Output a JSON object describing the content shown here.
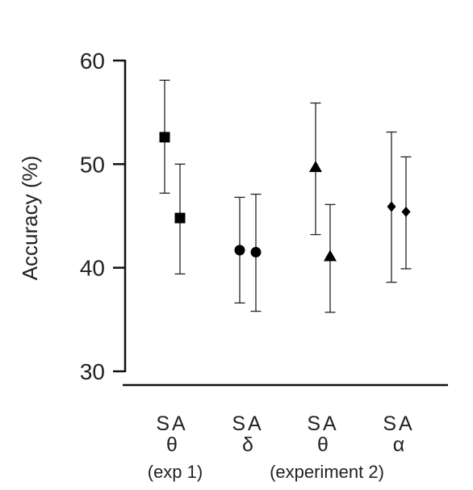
{
  "chart_data": {
    "type": "scatter",
    "ylabel": "Accuracy (%)",
    "ylim": [
      30,
      60
    ],
    "yticks": [
      30,
      40,
      50,
      60
    ],
    "grid": false,
    "points": [
      {
        "cond": "S",
        "band": "θ",
        "group": 0,
        "marker": "square",
        "y": 52.6,
        "err_low": 47.2,
        "err_high": 58.1
      },
      {
        "cond": "A",
        "band": "θ",
        "group": 0,
        "marker": "square",
        "y": 44.8,
        "err_low": 39.4,
        "err_high": 50.0
      },
      {
        "cond": "S",
        "band": "δ",
        "group": 1,
        "marker": "circle",
        "y": 41.7,
        "err_low": 36.6,
        "err_high": 46.8
      },
      {
        "cond": "A",
        "band": "δ",
        "group": 1,
        "marker": "circle",
        "y": 41.5,
        "err_low": 35.8,
        "err_high": 47.1
      },
      {
        "cond": "S",
        "band": "θ",
        "group": 2,
        "marker": "triangle",
        "y": 49.7,
        "err_low": 43.2,
        "err_high": 55.9
      },
      {
        "cond": "A",
        "band": "θ",
        "group": 2,
        "marker": "triangle",
        "y": 41.1,
        "err_low": 35.7,
        "err_high": 46.1
      },
      {
        "cond": "S",
        "band": "α",
        "group": 3,
        "marker": "diamond",
        "y": 45.9,
        "err_low": 38.6,
        "err_high": 53.1
      },
      {
        "cond": "A",
        "band": "α",
        "group": 3,
        "marker": "diamond",
        "y": 45.4,
        "err_low": 39.9,
        "err_high": 50.7
      }
    ],
    "categories": [
      {
        "conditions": "SA",
        "band": "θ"
      },
      {
        "conditions": "SA",
        "band": "δ"
      },
      {
        "conditions": "SA",
        "band": "θ"
      },
      {
        "conditions": "SA",
        "band": "α"
      }
    ],
    "group_labels": [
      "(exp 1)",
      "(experiment 2)"
    ]
  }
}
